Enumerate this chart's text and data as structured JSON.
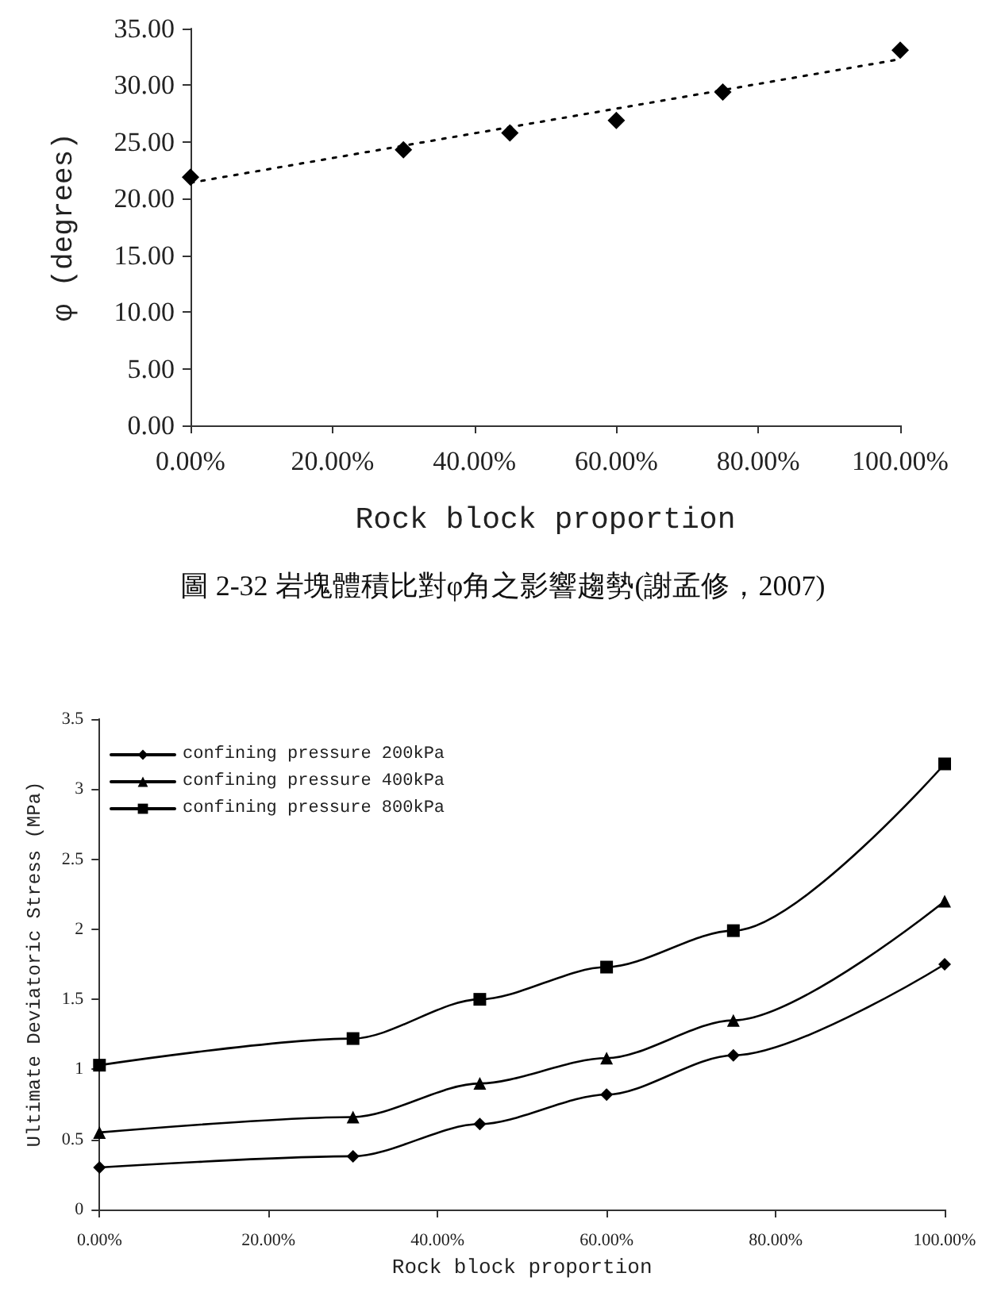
{
  "chart_data": [
    {
      "type": "scatter",
      "xlabel": "Rock block proportion",
      "ylabel": "φ (degrees)",
      "annotations": [
        "圖 2-32 岩塊體積比對φ角之影響趨勢(謝孟修，2007)"
      ],
      "x": [
        0,
        30,
        45,
        60,
        75,
        100
      ],
      "series": [
        {
          "type": "scatter",
          "color": "#000000",
          "marker": "diamond",
          "values": [
            21.9,
            24.3,
            25.8,
            26.9,
            29.4,
            33.1
          ]
        },
        {
          "type": "line",
          "color": "#000000",
          "marker": "none",
          "line_style": "dotted",
          "x": [
            0,
            100
          ],
          "values": [
            21.4,
            32.3
          ]
        }
      ],
      "xlim": [
        0,
        100
      ],
      "xticks": [
        {
          "value": 0,
          "label": "0.00%"
        },
        {
          "value": 20,
          "label": "20.00%"
        },
        {
          "value": 40,
          "label": "40.00%"
        },
        {
          "value": 60,
          "label": "60.00%"
        },
        {
          "value": 80,
          "label": "80.00%"
        },
        {
          "value": 100,
          "label": "100.00%"
        }
      ],
      "ylim": [
        0,
        35
      ],
      "yticks": [
        {
          "value": 0,
          "label": "0.00"
        },
        {
          "value": 5,
          "label": "5.00"
        },
        {
          "value": 10,
          "label": "10.00"
        },
        {
          "value": 15,
          "label": "15.00"
        },
        {
          "value": 20,
          "label": "20.00"
        },
        {
          "value": 25,
          "label": "25.00"
        },
        {
          "value": 30,
          "label": "30.00"
        },
        {
          "value": 35,
          "label": "35.00"
        }
      ],
      "grid": false,
      "legend": false
    },
    {
      "type": "line",
      "xlabel": "Rock block proportion",
      "ylabel": "Ultimate Deviatoric Stress (MPa)",
      "x": [
        0,
        30,
        45,
        60,
        75,
        100
      ],
      "series": [
        {
          "name": "confining pressure 200kPa",
          "color": "#000000",
          "marker": "diamond",
          "values": [
            0.3,
            0.38,
            0.61,
            0.82,
            1.1,
            1.75
          ]
        },
        {
          "name": "confining pressure 400kPa",
          "color": "#000000",
          "marker": "triangle",
          "values": [
            0.55,
            0.66,
            0.9,
            1.08,
            1.35,
            2.2
          ]
        },
        {
          "name": "confining pressure 800kPa",
          "color": "#000000",
          "marker": "square",
          "values": [
            1.03,
            1.22,
            1.5,
            1.73,
            1.99,
            3.18
          ]
        }
      ],
      "xlim": [
        0,
        100
      ],
      "xticks": [
        {
          "value": 0,
          "label": "0.00%"
        },
        {
          "value": 20,
          "label": "20.00%"
        },
        {
          "value": 40,
          "label": "40.00%"
        },
        {
          "value": 60,
          "label": "60.00%"
        },
        {
          "value": 80,
          "label": "80.00%"
        },
        {
          "value": 100,
          "label": "100.00%"
        }
      ],
      "ylim": [
        0,
        3.5
      ],
      "yticks": [
        0,
        0.5,
        1,
        1.5,
        2,
        2.5,
        3,
        3.5
      ],
      "grid": false,
      "legend": "top left"
    }
  ]
}
